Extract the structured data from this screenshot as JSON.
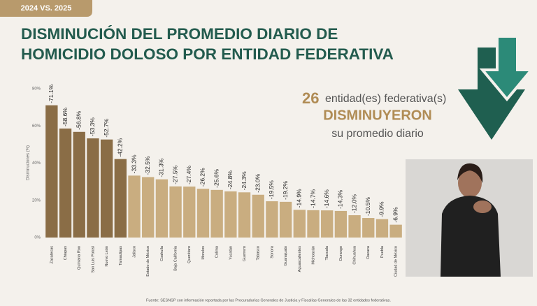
{
  "badge": "2024 VS. 2025",
  "summary": {
    "number": 26,
    "text": "entidad(es) federativa(s)",
    "highlight": "DISMINUYERON",
    "subtext": "su promedio diario"
  },
  "source": "Fuente: SESNSP con información reportada por las Procuradurías Generales de Justicia y Fiscalías Generales de las 32 entidades federativas.",
  "chart_data": {
    "type": "bar",
    "title": [
      "DISMINUCIÓN DEL PROMEDIO DIARIO DE",
      "HOMICIDIO DOLOSO POR ENTIDAD FEDERATIVA"
    ],
    "y_label": "Disminuciones (%)",
    "categories": [
      "Zacatecas",
      "Chiapas",
      "Quintana Roo",
      "San Luis Potosí",
      "Nuevo León",
      "Tamaulipas",
      "Jalisco",
      "Estado de México",
      "Coahuila",
      "Baja California",
      "Querétaro",
      "Morelos",
      "Colima",
      "Yucatán",
      "Guerrero",
      "Tabasco",
      "Sonora",
      "Guanajuato",
      "Aguascalientes",
      "Michoacán",
      "Tlaxcala",
      "Durango",
      "Chihuahua",
      "Oaxaca",
      "Puebla",
      "Ciudad de México"
    ],
    "values": [
      71.1,
      58.6,
      56.8,
      53.3,
      52.7,
      42.2,
      33.3,
      32.5,
      31.3,
      27.5,
      27.4,
      26.2,
      25.6,
      24.8,
      24.3,
      23.0,
      19.5,
      19.2,
      14.9,
      14.7,
      14.6,
      14.3,
      12.0,
      10.5,
      9.9,
      6.9
    ],
    "value_labels": [
      "-71.1%",
      "-58.6%",
      "-56.8%",
      "-53.3%",
      "-52.7%",
      "-42.2%",
      "-33.3%",
      "-32.5%",
      "-31.3%",
      "-27.5%",
      "-27.4%",
      "-26.2%",
      "-25.6%",
      "-24.8%",
      "-24.3%",
      "-23.0%",
      "-19.5%",
      "-19.2%",
      "-14.9%",
      "-14.7%",
      "-14.6%",
      "-14.3%",
      "-12.0%",
      "-10.5%",
      "-9.9%",
      "-6.9%"
    ],
    "colors": [
      "#8a6d46",
      "#8a6d46",
      "#8a6d46",
      "#8a6d46",
      "#8a6d46",
      "#8a6d46",
      "#c9ad80",
      "#c9ad80",
      "#c9ad80",
      "#c9ad80",
      "#c9ad80",
      "#c9ad80",
      "#c9ad80",
      "#c9ad80",
      "#c9ad80",
      "#c9ad80",
      "#c9ad80",
      "#c9ad80",
      "#c9ad80",
      "#c9ad80",
      "#c9ad80",
      "#c9ad80",
      "#c9ad80",
      "#c9ad80",
      "#c9ad80",
      "#c9ad80"
    ],
    "ylim": [
      0,
      80
    ],
    "yticks": [
      {
        "value": 0,
        "label": "0%"
      },
      {
        "value": 20,
        "label": "20%"
      },
      {
        "value": 40,
        "label": "40%"
      },
      {
        "value": 60,
        "label": "60%"
      },
      {
        "value": 80,
        "label": "80%"
      }
    ],
    "grid": false
  }
}
